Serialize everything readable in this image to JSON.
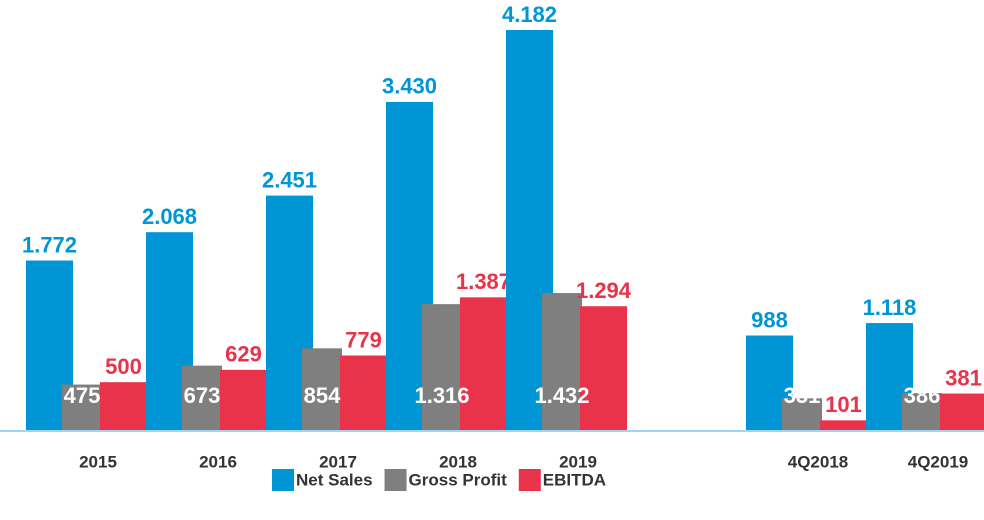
{
  "chart_data": {
    "type": "bar",
    "categories": [
      "2015",
      "2016",
      "2017",
      "2018",
      "2019",
      null,
      "4Q2018",
      "4Q2019"
    ],
    "series": [
      {
        "name": "Net Sales",
        "color": "#0096d6",
        "values": [
          1772,
          2068,
          2451,
          3430,
          4182,
          null,
          988,
          1118
        ],
        "value_labels": [
          "1.772",
          "2.068",
          "2.451",
          "3.430",
          "4.182",
          null,
          "988",
          "1.118"
        ]
      },
      {
        "name": "Gross Profit",
        "color": "#7f7f7f",
        "values": [
          475,
          673,
          854,
          1316,
          1432,
          null,
          331,
          386
        ],
        "value_labels": [
          "475",
          "673",
          "854",
          "1.316",
          "1.432",
          null,
          "331",
          "386"
        ]
      },
      {
        "name": "EBITDA",
        "color": "#e8334a",
        "values": [
          500,
          629,
          779,
          1387,
          1294,
          null,
          101,
          381
        ],
        "value_labels": [
          "500",
          "629",
          "779",
          "1.387",
          "1.294",
          null,
          "101",
          "381"
        ]
      }
    ],
    "legend": "bottom"
  }
}
